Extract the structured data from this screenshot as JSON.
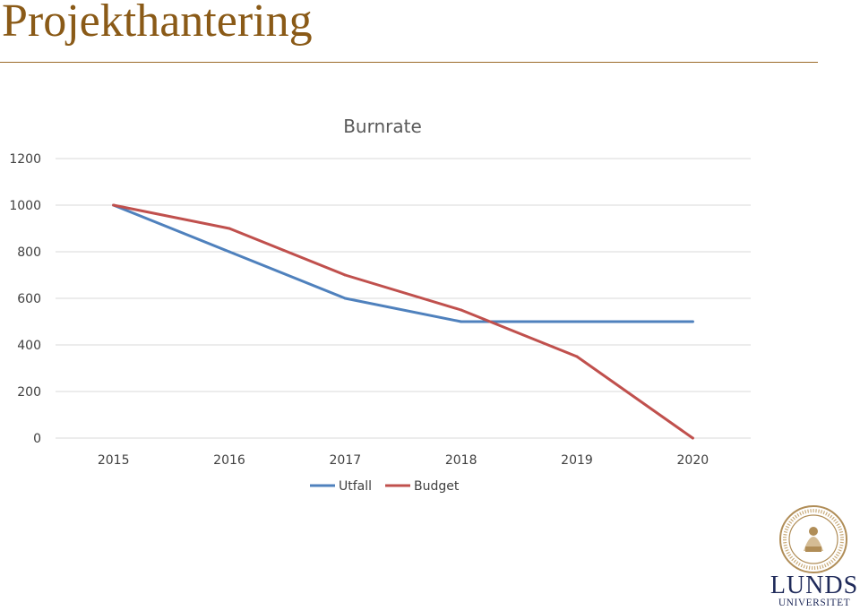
{
  "slide": {
    "title": "Projekthantering"
  },
  "colors": {
    "title": "#8a5a17",
    "rule": "#9c6b2a",
    "gridline": "#d9d9d9",
    "logo": "#1f2a5a"
  },
  "logo": {
    "name": "LUNDS",
    "sub": "UNIVERSITET"
  },
  "chart_data": {
    "type": "line",
    "title": "Burnrate",
    "xlabel": "",
    "ylabel": "",
    "categories": [
      "2015",
      "2016",
      "2017",
      "2018",
      "2019",
      "2020"
    ],
    "yticks": [
      0,
      200,
      400,
      600,
      800,
      1000,
      1200
    ],
    "ylim": [
      0,
      1200
    ],
    "grid": true,
    "legend_position": "bottom",
    "series": [
      {
        "name": "Utfall",
        "color": "#4f81bd",
        "values": [
          1000,
          800,
          600,
          500,
          500,
          500
        ]
      },
      {
        "name": "Budget",
        "color": "#c0504d",
        "values": [
          1000,
          900,
          700,
          550,
          350,
          0
        ]
      }
    ]
  }
}
